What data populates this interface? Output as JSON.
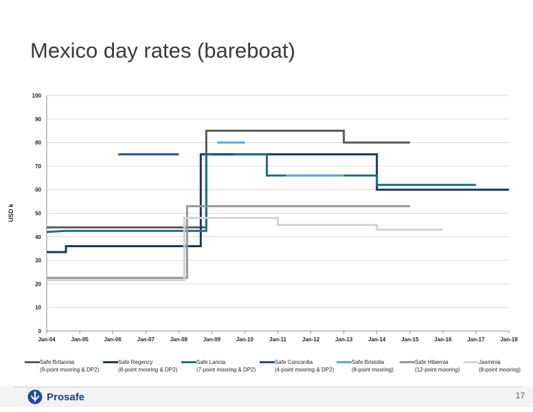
{
  "slide": {
    "title": "Mexico day rates (bareboat)",
    "page_number": "17",
    "logo_text": "Prosafe"
  },
  "chart_data": {
    "type": "line",
    "step": true,
    "title": "",
    "xlabel": "",
    "ylabel": "USD k",
    "ylim": [
      0,
      100
    ],
    "y_ticks": [
      0,
      10,
      20,
      30,
      40,
      50,
      60,
      70,
      80,
      90,
      100
    ],
    "x_tick_labels": [
      "Jan-04",
      "Jan-05",
      "Jan-06",
      "Jan-07",
      "Jan-08",
      "Jan-09",
      "Jan-10",
      "Jan-11",
      "Jan-12",
      "Jan-13",
      "Jan-14",
      "Jan-15",
      "Jan-16",
      "Jan-17",
      "Jan-18"
    ],
    "xlim": [
      "Jan-04",
      "Jan-18"
    ],
    "grid": "horizontal",
    "legend_position": "bottom",
    "series": [
      {
        "name": "Safe Britannia",
        "subtitle": "(9-point mooring & DP2)",
        "color": "#595959",
        "points": [
          [
            "Jan-04",
            44
          ],
          [
            "Nov-08",
            44
          ],
          [
            "Nov-08",
            85
          ],
          [
            "Jan-13",
            85
          ],
          [
            "Jan-13",
            80
          ],
          [
            "Jan-15",
            80
          ]
        ]
      },
      {
        "name": "Safe Regency",
        "subtitle": "(8-point mooring & DP2)",
        "color": "#17375e",
        "points": [
          [
            "Jan-04",
            33.5
          ],
          [
            "Aug-04",
            33.5
          ],
          [
            "Aug-04",
            36
          ],
          [
            "Sep-08",
            36
          ],
          [
            "Sep-08",
            75
          ],
          [
            "Jan-14",
            75
          ],
          [
            "Jan-14",
            60
          ],
          [
            "Jan-18",
            60
          ]
        ]
      },
      {
        "name": "Safe Lancia",
        "subtitle": "(7-point mooring & DP2)",
        "color": "#1f6f7e",
        "points": [
          [
            "Jan-04",
            42
          ],
          [
            "Aug-04",
            42.5
          ],
          [
            "Nov-08",
            42.5
          ],
          [
            "Nov-08",
            75
          ],
          [
            "Sep-10",
            75
          ],
          [
            "Sep-10",
            66
          ],
          [
            "Jan-14",
            66
          ],
          [
            "Jan-14",
            62
          ],
          [
            "Jan-17",
            62
          ]
        ]
      },
      {
        "name": "Safe Concordia",
        "subtitle": "(4-point mooring & DP2)",
        "color": "#254a9a",
        "points": [
          [
            "Mar-06",
            75
          ],
          [
            "Jan-08",
            75
          ]
        ]
      },
      {
        "name": "Safe Bristolia",
        "subtitle": "(8-point mooring)",
        "color": "#5fa8dc",
        "points": [
          [
            "Mar-09",
            80
          ],
          [
            "Jan-10",
            80
          ]
        ]
      },
      {
        "name": "Safe Hibernia",
        "subtitle": "(12-point mooring)",
        "color": "#969696",
        "points": [
          [
            "Jan-04",
            22.5
          ],
          [
            "Apr-08",
            22.5
          ],
          [
            "Apr-08",
            53
          ],
          [
            "Jan-15",
            53
          ]
        ]
      },
      {
        "name": "Jasminia",
        "subtitle": "(8-point mooring)",
        "color": "#d4d4d0",
        "points": [
          [
            "Jan-04",
            21.5
          ],
          [
            "Mar-08",
            21.5
          ],
          [
            "Mar-08",
            48
          ],
          [
            "Jan-11",
            48
          ],
          [
            "Jan-11",
            45
          ],
          [
            "Jan-14",
            45
          ],
          [
            "Jan-14",
            43
          ],
          [
            "Jan-16",
            43
          ]
        ]
      }
    ],
    "overlays": [
      {
        "name": "Safe Bristolia",
        "color": "#5fa8dc",
        "points": [
          [
            "Apr-11",
            66
          ],
          [
            "Jan-13",
            66
          ]
        ]
      },
      {
        "name": "Safe Concordia",
        "color": "#254a9a",
        "points": [
          [
            "Jan-09",
            75
          ],
          [
            "Sep-09",
            75
          ]
        ]
      }
    ]
  }
}
